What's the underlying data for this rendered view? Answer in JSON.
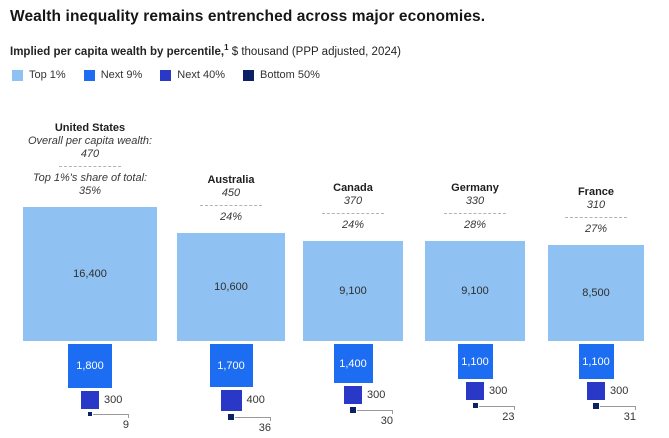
{
  "header": {
    "title": "Wealth inequality remains entrenched across major economies.",
    "subtitle_bold": "Implied per capita wealth by percentile,",
    "subtitle_sup": "1",
    "subtitle_rest": " $ thousand (PPP adjusted, 2024)"
  },
  "legend": [
    {
      "label": "Top 1%",
      "color": "#8fc2f2"
    },
    {
      "label": "Next 9%",
      "color": "#1c6df2"
    },
    {
      "label": "Next 40%",
      "color": "#2a38c8"
    },
    {
      "label": "Bottom 50%",
      "color": "#0a2166"
    }
  ],
  "chart_data": {
    "type": "proportional-area-squares",
    "title": "Wealth inequality remains entrenched across major economies.",
    "unit_label": "Implied per capita wealth by percentile, $ thousand (PPP adjusted, 2024)",
    "groups": [
      "Top 1%",
      "Next 9%",
      "Next 40%",
      "Bottom 50%"
    ],
    "group_colors": [
      "#8fc2f2",
      "#1c6df2",
      "#2a38c8",
      "#0a2166"
    ],
    "annotations": {
      "overall_label": "Overall per capita wealth:",
      "share_label": "Top 1%'s share of total:"
    },
    "countries": [
      {
        "name": "United States",
        "overall_per_capita_wealth": "470",
        "top1_share_of_total": "35%",
        "values": [
          16400,
          1800,
          300,
          9
        ],
        "labels": [
          "16,400",
          "1,800",
          "300",
          "9"
        ],
        "show_annotation_labels": true
      },
      {
        "name": "Australia",
        "overall_per_capita_wealth": "450",
        "top1_share_of_total": "24%",
        "values": [
          10600,
          1700,
          400,
          36
        ],
        "labels": [
          "10,600",
          "1,700",
          "400",
          "36"
        ],
        "show_annotation_labels": false
      },
      {
        "name": "Canada",
        "overall_per_capita_wealth": "370",
        "top1_share_of_total": "24%",
        "values": [
          9100,
          1400,
          300,
          30
        ],
        "labels": [
          "9,100",
          "1,400",
          "300",
          "30"
        ],
        "show_annotation_labels": false
      },
      {
        "name": "Germany",
        "overall_per_capita_wealth": "330",
        "top1_share_of_total": "28%",
        "values": [
          9100,
          1100,
          300,
          23
        ],
        "labels": [
          "9,100",
          "1,100",
          "300",
          "23"
        ],
        "show_annotation_labels": false
      },
      {
        "name": "France",
        "overall_per_capita_wealth": "310",
        "top1_share_of_total": "27%",
        "values": [
          8500,
          1100,
          300,
          31
        ],
        "labels": [
          "8,500",
          "1,100",
          "300",
          "31"
        ],
        "show_annotation_labels": false
      }
    ]
  }
}
